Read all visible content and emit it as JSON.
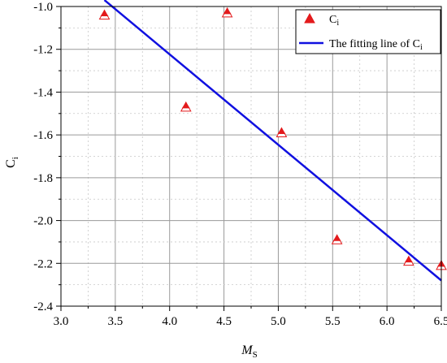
{
  "chart_data": {
    "type": "scatter",
    "title": "",
    "xlabel": {
      "main": "M",
      "sub": "S"
    },
    "ylabel": {
      "main": "C",
      "sub": "i"
    },
    "xlim": [
      3.0,
      6.5
    ],
    "ylim": [
      -2.4,
      -1.0
    ],
    "xticks": [
      3.0,
      3.5,
      4.0,
      4.5,
      5.0,
      5.5,
      6.0,
      6.5
    ],
    "yticks": [
      -1.0,
      -1.2,
      -1.4,
      -1.6,
      -1.8,
      -2.0,
      -2.2,
      -2.4
    ],
    "xtick_labels": [
      "3.0",
      "3.5",
      "4.0",
      "4.5",
      "5.0",
      "5.5",
      "6.0",
      "6.5"
    ],
    "ytick_labels": [
      "-1.0",
      "-1.2",
      "-1.4",
      "-1.6",
      "-1.8",
      "-2.0",
      "-2.2",
      "-2.4"
    ],
    "grid": true,
    "legend_position": "top-right",
    "series": [
      {
        "name": {
          "main": "C",
          "sub": "i"
        },
        "type": "scatter",
        "marker": "triangle",
        "color": "#e31a1c",
        "x": [
          3.4,
          4.15,
          4.53,
          5.03,
          5.54,
          6.2,
          6.5
        ],
        "y": [
          -1.04,
          -1.47,
          -1.03,
          -1.59,
          -2.09,
          -2.19,
          -2.21
        ]
      },
      {
        "name": {
          "main": "The fitting line of C",
          "sub": "i"
        },
        "type": "line",
        "color": "#1010e0",
        "x": [
          3.4,
          6.5
        ],
        "y": [
          -0.97,
          -2.28
        ]
      }
    ]
  }
}
